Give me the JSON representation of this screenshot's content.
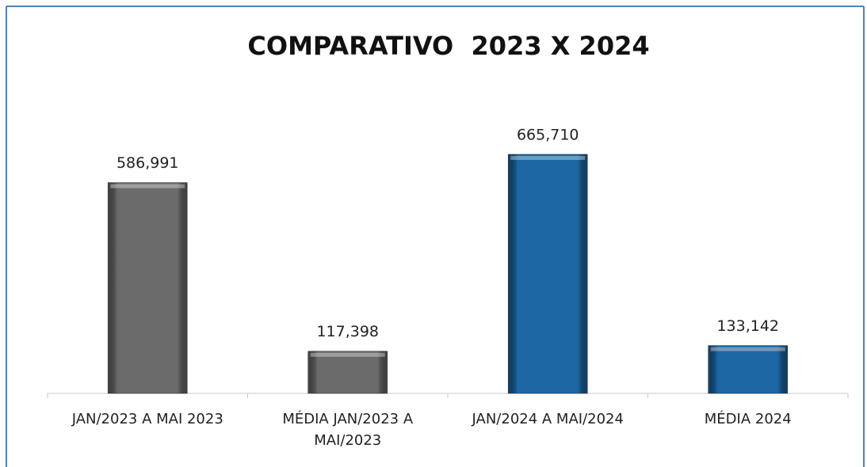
{
  "chart_data": {
    "type": "bar",
    "title": "COMPARATIVO  2023 X 2024",
    "categories": [
      "JAN/2023 A MAI 2023",
      "MÉDIA JAN/2023 A MAI/2023",
      "JAN/2024 A MAI/2024",
      "MÉDIA 2024"
    ],
    "values": [
      586991,
      117398,
      665710,
      133142
    ],
    "value_labels": [
      "586,991",
      "117,398",
      "665,710",
      "133,142"
    ],
    "colors": [
      "#6b6b6b",
      "#6b6b6b",
      "#1c67a3",
      "#1c67a3"
    ]
  }
}
